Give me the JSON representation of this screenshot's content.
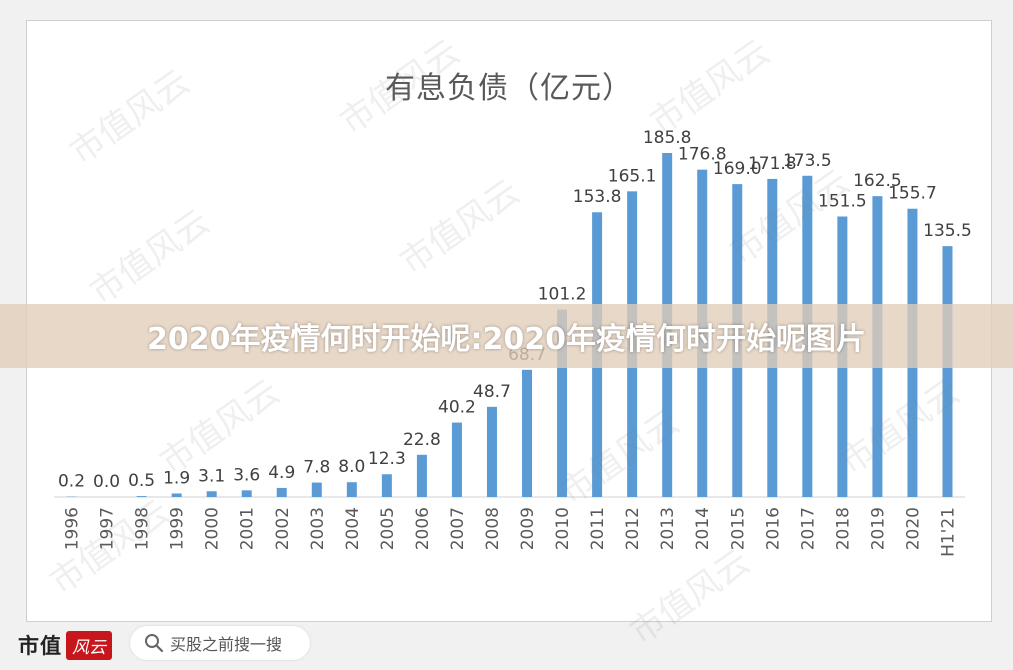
{
  "chart_data": {
    "type": "bar",
    "title": "有息负债（亿元）",
    "categories": [
      "1996",
      "1997",
      "1998",
      "1999",
      "2000",
      "2001",
      "2002",
      "2003",
      "2004",
      "2005",
      "2006",
      "2007",
      "2008",
      "2009",
      "2010",
      "2011",
      "2012",
      "2013",
      "2014",
      "2015",
      "2016",
      "2017",
      "2018",
      "2019",
      "2020",
      "H1'21"
    ],
    "values": [
      0.2,
      0.0,
      0.5,
      1.9,
      3.1,
      3.6,
      4.9,
      7.8,
      8.0,
      12.3,
      22.8,
      40.2,
      48.7,
      68.7,
      101.2,
      153.8,
      165.1,
      185.8,
      176.8,
      169.0,
      171.8,
      173.5,
      151.5,
      162.5,
      155.7,
      135.5
    ],
    "value_labels": [
      "0.2",
      "0.0",
      "0.5",
      "1.9",
      "3.1",
      "3.6",
      "4.9",
      "7.8",
      "8.0",
      "12.3",
      "22.8",
      "40.2",
      "48.7",
      "68.7",
      "101.2",
      "153.8",
      "165.1",
      "185.8",
      "176.8",
      "169.0",
      "171.8",
      "173.5",
      "151.5",
      "162.5",
      "155.7",
      "135.5"
    ],
    "ylim": [
      0,
      200
    ],
    "bar_color": "#5b9bd5",
    "grid": false,
    "legend": "none"
  },
  "banner": {
    "text": "2020年疫情何时开始呢:2020年疫情何时开始呢图片"
  },
  "footer": {
    "brand_name": "市值",
    "brand_logo_text": "风云",
    "search_placeholder": "买股之前搜一搜",
    "search_icon": "search-icon"
  },
  "watermark": "市值风云",
  "colors": {
    "background": "#f1f1f1",
    "card": "#ffffff",
    "text": "#595959",
    "brand_red": "#c8161d"
  }
}
